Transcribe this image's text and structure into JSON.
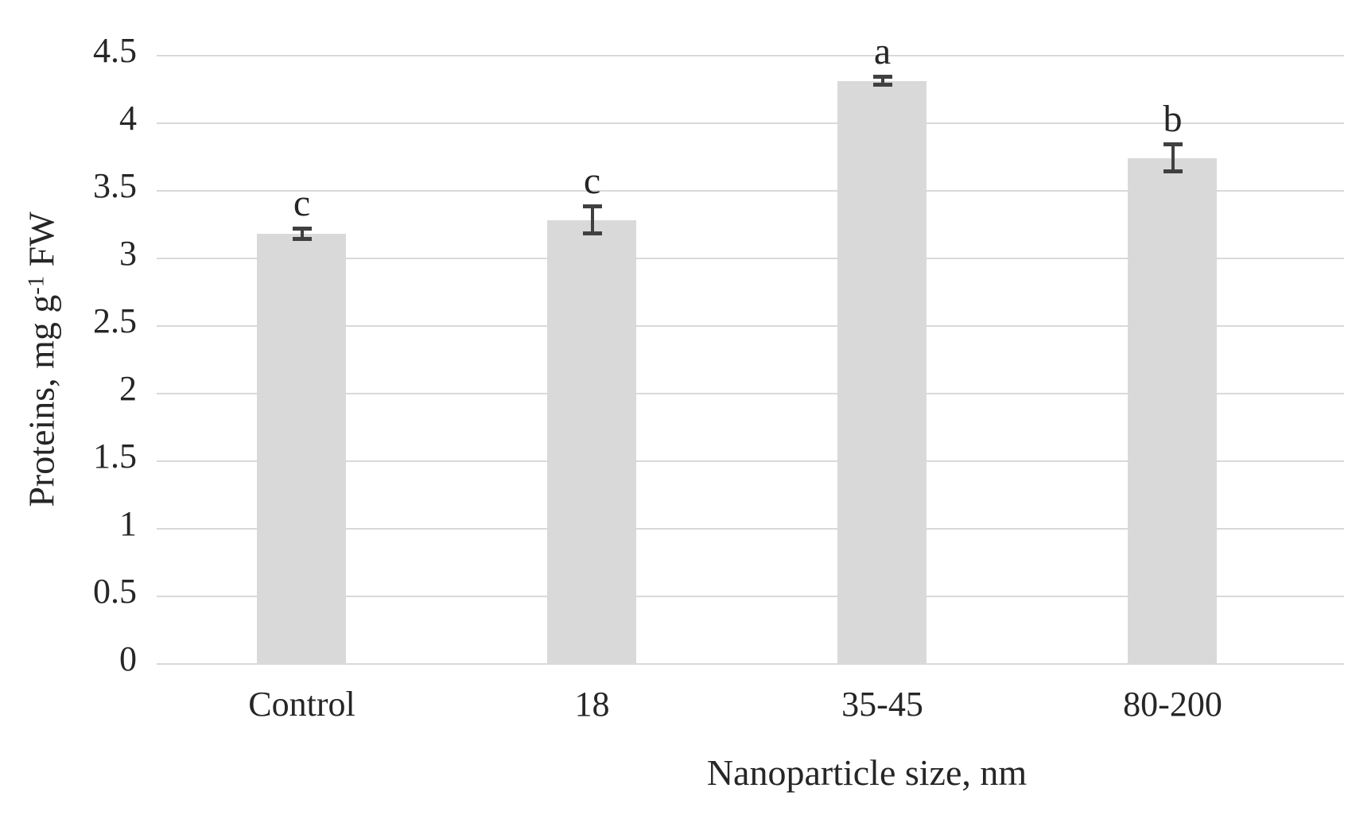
{
  "chart_data": {
    "type": "bar",
    "title": "",
    "xlabel": "Nanoparticle size, nm",
    "ylabel": "Proteins, mg g⁻¹ FW",
    "ylabel_parts": {
      "prefix": "Proteins, mg g",
      "superscript": "-1",
      "suffix": " FW"
    },
    "categories": [
      "Control",
      "18",
      "35-45",
      "80-200"
    ],
    "values": [
      3.18,
      3.28,
      4.31,
      3.74
    ],
    "error_bars": [
      0.04,
      0.1,
      0.03,
      0.1
    ],
    "significance_letters": [
      "c",
      "c",
      "a",
      "b"
    ],
    "ylim": [
      0,
      4.5
    ],
    "ytick_values": [
      0,
      0.5,
      1,
      1.5,
      2,
      2.5,
      3,
      3.5,
      4,
      4.5
    ],
    "ytick_labels": [
      "0",
      "0.5",
      "1",
      "1.5",
      "2",
      "2.5",
      "3",
      "3.5",
      "4",
      "4.5"
    ],
    "grid": true,
    "legend_position": "none",
    "colors": {
      "bar_fill": "#d9d9d9",
      "gridline": "#d9d9d9",
      "error_bar": "#404040",
      "text": "#262626",
      "background": "#ffffff"
    }
  }
}
